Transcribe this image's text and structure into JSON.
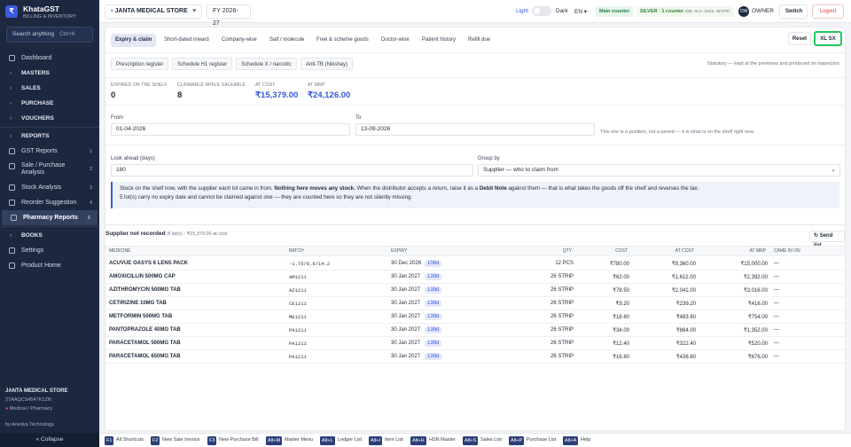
{
  "sidebar": {
    "logo": "₹",
    "brand": "KhataGST",
    "tagline": "BILLING & INVENTORY",
    "search": {
      "placeholder": "Search anything",
      "shortcut": "Ctrl+K"
    },
    "nav": [
      {
        "label": "Dashboard"
      },
      {
        "label": "MASTERS",
        "group": true
      },
      {
        "label": "SALES",
        "group": true
      },
      {
        "label": "PURCHASE",
        "group": true
      },
      {
        "label": "VOUCHERS",
        "group": true
      },
      {
        "label": "REPORTS",
        "group": true,
        "open": true
      },
      {
        "label": "GST Reports",
        "badge": 1
      },
      {
        "label": "Sale / Purchase Analysis",
        "badge": 2
      },
      {
        "label": "Stock Analysis",
        "badge": 3
      },
      {
        "label": "Reorder Suggestion",
        "badge": 4
      },
      {
        "label": "Pharmacy Reports",
        "badge": 5,
        "active": true
      },
      {
        "label": "BOOKS",
        "group": true
      },
      {
        "label": "Settings"
      },
      {
        "label": "Product Home"
      }
    ],
    "store": {
      "name": "JANTA MEDICAL STORE",
      "gstin": "27AAQCS4547K1ZN",
      "kind": "Medical / Pharmacy",
      "vendor": "by Anedya Technology"
    },
    "collapse": "« Collapse"
  },
  "topbar": {
    "store": "JANTA MEDICAL STORE",
    "fy": "FY 2026-27",
    "light": "Light",
    "dark": "Dark",
    "lang": "EN",
    "counter": "Main counter",
    "plan": "SILVER · 1 counter",
    "license": "AND-SLX-2026-4E7F97",
    "avatar": "OW",
    "role": "OWNER",
    "switch": "Switch",
    "logout": "Logout"
  },
  "tabs": [
    "Expiry & claim",
    "Short-dated inward",
    "Company-wise",
    "Salt / molecule",
    "Free & scheme goods",
    "Doctor-wise",
    "Patient history",
    "Refill due"
  ],
  "buttons": {
    "reset": "Reset",
    "export": "XL SX"
  },
  "subtabs": [
    "Prescription register",
    "Schedule H1 register",
    "Schedule X / narcotic",
    "Anti-TB (Nikshay)"
  ],
  "statutory_note": "Statutory — kept at the premises and produced on inspection",
  "stats": [
    {
      "label": "EXPIRED ON THE SHELF",
      "value": 0
    },
    {
      "label": "CLAIMABLE WHILE SALEABLE",
      "value": 8
    },
    {
      "label": "AT COST",
      "value": "₹15,379.00"
    },
    {
      "label": "AT MRP",
      "value": "₹24,126.00"
    }
  ],
  "filters": {
    "from_label": "From",
    "from": "01-04-2026",
    "to_label": "To",
    "to": "13-09-2026",
    "position_note": "This one is a position, not a period — it is what is on the shelf right now.",
    "lookahead_label": "Look ahead (days)",
    "lookahead": 180,
    "group_label": "Group by",
    "group": "Supplier — who to claim from"
  },
  "info": {
    "line1": [
      {
        "text": "Stock on the shelf now, with the supplier each lot came in from. "
      },
      {
        "text": "Nothing here moves any stock.",
        "bold": true
      },
      {
        "text": " When the distributor accepts a return, raise it as a "
      },
      {
        "text": "Debit Note",
        "bold": true
      },
      {
        "text": " against them — that is what takes the goods off the shelf and reverses the tax."
      }
    ],
    "line2": "5 lot(s) carry no expiry date and cannot be claimed against one — they are counted here so they are not silently missing."
  },
  "table": {
    "group": "Supplier not recorded",
    "summary": "8 lot(s) · ₹15,379.00 at cost",
    "send": "Send list",
    "columns": [
      "MEDICINE",
      "BATCH",
      "EXPIRY",
      "QTY",
      "COST",
      "AT COST",
      "AT MRP",
      "CAME IN ON"
    ],
    "rows": [
      [
        "ACUVUE OASYS 6 LENS PACK",
        "-1.75/8.6/14.2",
        "30 Dec 2026",
        "108d",
        "12 PCS",
        "₹780.00",
        "₹9,360.00",
        "₹15,000.00",
        "—"
      ],
      [
        "AMOXICILLIN 500MG CAP",
        "AM1211",
        "30 Jan 2027",
        "139d",
        "26 STRIP",
        "₹62.00",
        "₹1,612.00",
        "₹2,392.00",
        "—"
      ],
      [
        "AZITHROMYCIN 500MG TAB",
        "AZ1211",
        "30 Jan 2027",
        "139d",
        "26 STRIP",
        "₹78.50",
        "₹2,041.00",
        "₹3,016.00",
        "—"
      ],
      [
        "CETIRIZINE 10MG TAB",
        "CE1211",
        "30 Jan 2027",
        "139d",
        "26 STRIP",
        "₹9.20",
        "₹239.20",
        "₹416.00",
        "—"
      ],
      [
        "METFORMIN 500MG TAB",
        "ME1211",
        "30 Jan 2027",
        "139d",
        "26 STRIP",
        "₹18.60",
        "₹483.60",
        "₹754.00",
        "—"
      ],
      [
        "PANTOPRAZOLE 40MG TAB",
        "PA1211",
        "30 Jan 2027",
        "139d",
        "26 STRIP",
        "₹34.00",
        "₹884.00",
        "₹1,352.00",
        "—"
      ],
      [
        "PARACETAMOL 500MG TAB",
        "PA1211",
        "30 Jan 2027",
        "139d",
        "26 STRIP",
        "₹12.40",
        "₹322.40",
        "₹520.00",
        "—"
      ],
      [
        "PARACETAMOL 650MG TAB",
        "PA1211",
        "30 Jan 2027",
        "139d",
        "26 STRIP",
        "₹16.80",
        "₹436.80",
        "₹676.00",
        "—"
      ]
    ]
  },
  "shortcuts": [
    {
      "key": "F1",
      "label": "All Shortcuts"
    },
    {
      "key": "F2",
      "label": "New Sale Invoice"
    },
    {
      "key": "F3",
      "label": "New Purchase Bill"
    },
    {
      "key": "Alt+M",
      "label": "Master Menu"
    },
    {
      "key": "Alt+L",
      "label": "Ledger List"
    },
    {
      "key": "Alt+I",
      "label": "Item List"
    },
    {
      "key": "Alt+H",
      "label": "HSN Master"
    },
    {
      "key": "Alt+S",
      "label": "Sales List"
    },
    {
      "key": "Alt+P",
      "label": "Purchase List"
    },
    {
      "key": "Alt+A",
      "label": "Help"
    }
  ]
}
